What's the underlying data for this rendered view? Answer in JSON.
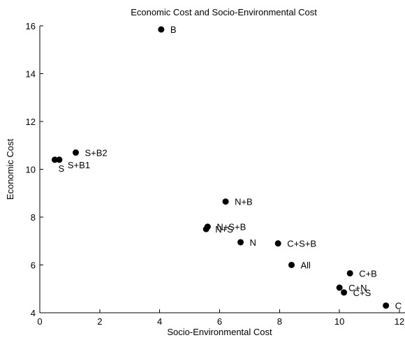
{
  "chart_data": {
    "type": "scatter",
    "title": "Economic Cost and Socio-Environmental Cost",
    "xlabel": "Socio-Environmental Cost",
    "ylabel": "Economic Cost",
    "xlim": [
      0,
      12
    ],
    "ylim": [
      4,
      16
    ],
    "xticks": [
      0,
      2,
      4,
      6,
      8,
      10,
      12
    ],
    "yticks": [
      4,
      6,
      8,
      10,
      12,
      14,
      16
    ],
    "xtick_labels": [
      "0",
      "2",
      "4",
      "6",
      "8",
      "10",
      "12"
    ],
    "ytick_labels": [
      "4",
      "6",
      "8",
      "10",
      "12",
      "14",
      "16"
    ],
    "grid": false,
    "legend": false,
    "marker_color": "#000000",
    "points": [
      {
        "label": "B",
        "x": 4.05,
        "y": 15.85
      },
      {
        "label": "S+B2",
        "x": 1.2,
        "y": 10.7
      },
      {
        "label": "S",
        "x": 0.5,
        "y": 10.4
      },
      {
        "label": "S+B1",
        "x": 0.65,
        "y": 10.4
      },
      {
        "label": "N+B",
        "x": 6.2,
        "y": 8.65
      },
      {
        "label": "N+S+B",
        "x": 5.6,
        "y": 7.6
      },
      {
        "label": "N+S",
        "x": 5.55,
        "y": 7.5
      },
      {
        "label": "N",
        "x": 6.7,
        "y": 6.95
      },
      {
        "label": "C+S+B",
        "x": 7.95,
        "y": 6.9
      },
      {
        "label": "All",
        "x": 8.4,
        "y": 6.0
      },
      {
        "label": "C+B",
        "x": 10.35,
        "y": 5.65
      },
      {
        "label": "C+N",
        "x": 10.0,
        "y": 5.05
      },
      {
        "label": "C+S",
        "x": 10.15,
        "y": 4.85
      },
      {
        "label": "C",
        "x": 11.55,
        "y": 4.3
      }
    ]
  }
}
